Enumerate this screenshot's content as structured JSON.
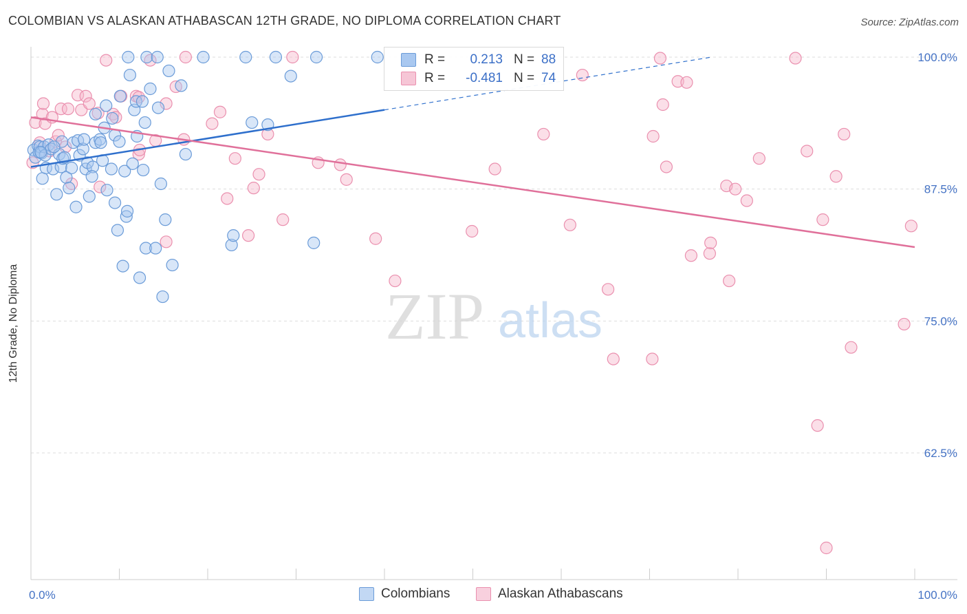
{
  "title": "COLOMBIAN VS ALASKAN ATHABASCAN 12TH GRADE, NO DIPLOMA CORRELATION CHART",
  "source": "Source: ZipAtlas.com",
  "watermark": {
    "zip": "ZIP",
    "atlas": "atlas"
  },
  "colors": {
    "blue_fill": "#a9c8f0",
    "blue_stroke": "#6a9bd8",
    "blue_line": "#2e6fcc",
    "pink_fill": "#f6b8cc",
    "pink_stroke": "#ea8fae",
    "pink_line": "#e0709a",
    "tick_text": "#4472c4",
    "grid": "#dddddd"
  },
  "legend": {
    "rows": [
      {
        "r_label": "R =",
        "r_value": "0.213",
        "n_label": "N =",
        "n_value": "88"
      },
      {
        "r_label": "R =",
        "r_value": "-0.481",
        "n_label": "N =",
        "n_value": "74"
      }
    ]
  },
  "bottom_legend": [
    "Colombians",
    "Alaskan Athabascans"
  ],
  "chart_data": {
    "type": "scatter",
    "title": "COLOMBIAN VS ALASKAN ATHABASCAN 12TH GRADE, NO DIPLOMA CORRELATION CHART",
    "xlabel": "",
    "ylabel": "12th Grade, No Diploma",
    "xlim": [
      0,
      100
    ],
    "ylim": [
      50.5,
      101.5
    ],
    "x_tick_labels": [
      "0.0%",
      "100.0%"
    ],
    "y_ticks": [
      100,
      87.5,
      75,
      62.5
    ],
    "y_tick_labels": [
      "100.0%",
      "87.5%",
      "75.0%",
      "62.5%"
    ],
    "grid": true,
    "series": [
      {
        "name": "Colombians",
        "trend": {
          "x": [
            0,
            40
          ],
          "y": [
            89.6,
            95.0
          ],
          "dashed_to": [
            77,
            100.0
          ]
        },
        "points": [
          [
            0.3,
            91.2
          ],
          [
            0.5,
            90.5
          ],
          [
            0.8,
            91.6
          ],
          [
            0.9,
            91.0
          ],
          [
            1.0,
            91.5
          ],
          [
            1.2,
            90.9
          ],
          [
            1.3,
            88.5
          ],
          [
            1.5,
            91.5
          ],
          [
            1.6,
            90.7
          ],
          [
            1.7,
            89.5
          ],
          [
            2.0,
            91.7
          ],
          [
            2.3,
            91.3
          ],
          [
            2.5,
            89.4
          ],
          [
            2.9,
            87.0
          ],
          [
            3.2,
            90.8
          ],
          [
            3.4,
            89.6
          ],
          [
            3.5,
            92.0
          ],
          [
            3.6,
            90.4
          ],
          [
            4.0,
            88.6
          ],
          [
            4.3,
            87.6
          ],
          [
            4.6,
            89.5
          ],
          [
            4.8,
            91.9
          ],
          [
            5.1,
            85.8
          ],
          [
            5.3,
            92.1
          ],
          [
            5.5,
            90.7
          ],
          [
            5.9,
            91.3
          ],
          [
            6.0,
            92.2
          ],
          [
            6.2,
            89.4
          ],
          [
            6.4,
            90.0
          ],
          [
            6.6,
            86.8
          ],
          [
            7.0,
            89.6
          ],
          [
            7.3,
            91.9
          ],
          [
            7.3,
            94.6
          ],
          [
            7.8,
            92.2
          ],
          [
            7.9,
            91.9
          ],
          [
            8.1,
            90.2
          ],
          [
            8.3,
            93.3
          ],
          [
            8.5,
            95.4
          ],
          [
            8.6,
            87.4
          ],
          [
            9.1,
            89.4
          ],
          [
            9.2,
            94.2
          ],
          [
            9.5,
            86.2
          ],
          [
            9.5,
            92.6
          ],
          [
            9.8,
            83.6
          ],
          [
            10.0,
            92.0
          ],
          [
            10.1,
            96.3
          ],
          [
            10.4,
            80.2
          ],
          [
            10.6,
            89.2
          ],
          [
            10.8,
            84.9
          ],
          [
            10.9,
            85.4
          ],
          [
            11.0,
            100.0
          ],
          [
            11.2,
            98.3
          ],
          [
            11.7,
            95.0
          ],
          [
            11.9,
            95.8
          ],
          [
            12.0,
            92.5
          ],
          [
            12.3,
            79.1
          ],
          [
            12.6,
            95.8
          ],
          [
            12.7,
            89.3
          ],
          [
            12.9,
            93.8
          ],
          [
            13.0,
            81.9
          ],
          [
            13.1,
            100.0
          ],
          [
            13.5,
            97.0
          ],
          [
            14.1,
            81.9
          ],
          [
            14.3,
            100.0
          ],
          [
            14.4,
            95.2
          ],
          [
            14.7,
            88.0
          ],
          [
            14.9,
            77.3
          ],
          [
            15.2,
            84.6
          ],
          [
            15.6,
            98.7
          ],
          [
            16.0,
            80.3
          ],
          [
            17.0,
            97.3
          ],
          [
            17.5,
            90.8
          ],
          [
            19.5,
            100.0
          ],
          [
            22.7,
            82.2
          ],
          [
            22.9,
            83.1
          ],
          [
            24.3,
            100.0
          ],
          [
            25.0,
            93.8
          ],
          [
            26.8,
            93.6
          ],
          [
            27.7,
            100.0
          ],
          [
            29.4,
            98.2
          ],
          [
            32.0,
            82.4
          ],
          [
            32.3,
            100.0
          ],
          [
            39.2,
            100.0
          ],
          [
            11.5,
            89.9
          ],
          [
            6.9,
            88.7
          ],
          [
            3.8,
            90.5
          ],
          [
            2.6,
            91.5
          ],
          [
            1.1,
            91.0
          ]
        ]
      },
      {
        "name": "Alaskan Athabascans",
        "trend": {
          "x": [
            0,
            100
          ],
          "y": [
            94.3,
            82.0
          ]
        },
        "points": [
          [
            0.2,
            90.0
          ],
          [
            0.5,
            93.8
          ],
          [
            1.0,
            91.9
          ],
          [
            1.3,
            94.6
          ],
          [
            1.4,
            95.6
          ],
          [
            1.6,
            93.7
          ],
          [
            2.1,
            91.1
          ],
          [
            2.4,
            94.3
          ],
          [
            2.8,
            92.0
          ],
          [
            3.1,
            92.6
          ],
          [
            3.4,
            95.1
          ],
          [
            3.9,
            91.5
          ],
          [
            4.2,
            95.1
          ],
          [
            4.6,
            88.0
          ],
          [
            5.3,
            96.4
          ],
          [
            5.7,
            95.0
          ],
          [
            6.2,
            96.3
          ],
          [
            6.6,
            95.6
          ],
          [
            7.6,
            94.7
          ],
          [
            7.8,
            87.7
          ],
          [
            8.5,
            99.7
          ],
          [
            9.3,
            94.6
          ],
          [
            9.6,
            94.3
          ],
          [
            10.2,
            96.3
          ],
          [
            11.9,
            96.3
          ],
          [
            12.2,
            96.2
          ],
          [
            12.2,
            90.8
          ],
          [
            12.3,
            91.2
          ],
          [
            13.5,
            99.7
          ],
          [
            14.1,
            92.1
          ],
          [
            15.3,
            95.6
          ],
          [
            15.3,
            82.5
          ],
          [
            16.4,
            97.2
          ],
          [
            17.3,
            92.2
          ],
          [
            17.5,
            100.0
          ],
          [
            20.5,
            93.7
          ],
          [
            21.4,
            94.8
          ],
          [
            22.2,
            86.6
          ],
          [
            23.1,
            90.4
          ],
          [
            24.6,
            83.1
          ],
          [
            25.2,
            87.6
          ],
          [
            25.8,
            88.9
          ],
          [
            26.8,
            92.7
          ],
          [
            28.5,
            84.6
          ],
          [
            29.6,
            100.0
          ],
          [
            32.5,
            90.0
          ],
          [
            35.0,
            89.8
          ],
          [
            35.7,
            88.4
          ],
          [
            39.0,
            82.8
          ],
          [
            41.2,
            78.8
          ],
          [
            49.9,
            83.5
          ],
          [
            52.5,
            89.4
          ],
          [
            58.0,
            92.7
          ],
          [
            61.0,
            84.1
          ],
          [
            62.4,
            98.3
          ],
          [
            65.3,
            78.0
          ],
          [
            65.9,
            71.4
          ],
          [
            70.3,
            71.4
          ],
          [
            70.4,
            92.5
          ],
          [
            71.2,
            99.9
          ],
          [
            71.5,
            95.5
          ],
          [
            71.9,
            89.6
          ],
          [
            73.2,
            97.7
          ],
          [
            74.2,
            97.6
          ],
          [
            74.7,
            81.2
          ],
          [
            76.8,
            81.4
          ],
          [
            76.9,
            82.4
          ],
          [
            78.7,
            87.8
          ],
          [
            79.0,
            78.8
          ],
          [
            79.7,
            87.5
          ],
          [
            81.0,
            86.4
          ],
          [
            82.4,
            90.4
          ],
          [
            86.5,
            99.9
          ],
          [
            87.8,
            91.1
          ]
        ]
      },
      {
        "name": "Alaskan Athabascans (extra)",
        "points": [
          [
            89.0,
            65.1
          ],
          [
            89.6,
            84.6
          ],
          [
            90.0,
            53.5
          ],
          [
            91.1,
            88.7
          ],
          [
            92.0,
            92.7
          ],
          [
            92.8,
            72.5
          ],
          [
            98.8,
            74.7
          ],
          [
            99.6,
            84.0
          ]
        ]
      }
    ]
  }
}
